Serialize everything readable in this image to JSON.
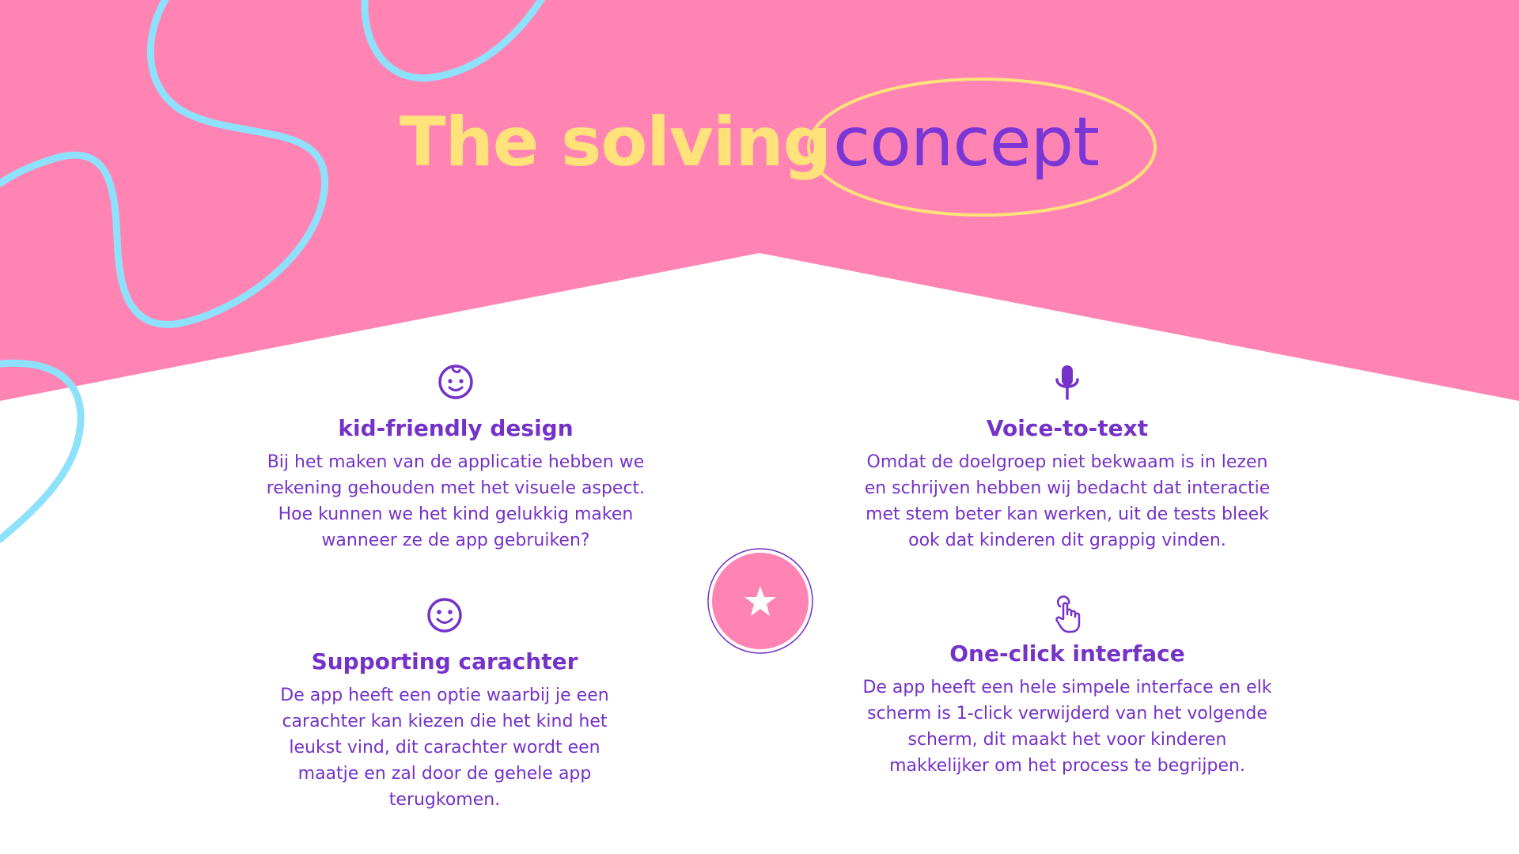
{
  "title": {
    "bold": "The solving",
    "light": "concept"
  },
  "colors": {
    "pink": "#FF84B4",
    "yellow": "#FFE27A",
    "purple": "#7532C8",
    "cyan": "#8EE1FB",
    "white": "#FFFFFF"
  },
  "features": [
    {
      "icon": "baby-face-icon",
      "heading": "kid-friendly design",
      "text": "Bij het maken van de applicatie hebben we rekening gehouden met het visuele aspect. Hoe kunnen we het kind gelukkig maken wanneer ze de app gebruiken?"
    },
    {
      "icon": "microphone-icon",
      "heading": "Voice-to-text",
      "text": "Omdat de doelgroep niet bekwaam is in lezen en schrijven hebben wij bedacht dat interactie met stem beter kan werken, uit de tests bleek ook dat kinderen dit grappig vinden."
    },
    {
      "icon": "smiley-icon",
      "heading": "Supporting carachter",
      "text": "De app heeft een optie waarbij je een carachter kan kiezen die het kind het leukst vind, dit carachter wordt een maatje en zal door de gehele app terugkomen."
    },
    {
      "icon": "pointing-hand-icon",
      "heading": "One-click interface",
      "text": "De app heeft een hele simpele interface en elk scherm is 1-click verwijderd van het volgende scherm, dit maakt het voor kinderen makkelijker om het process te begrijpen."
    }
  ],
  "center_icon": "star-icon"
}
